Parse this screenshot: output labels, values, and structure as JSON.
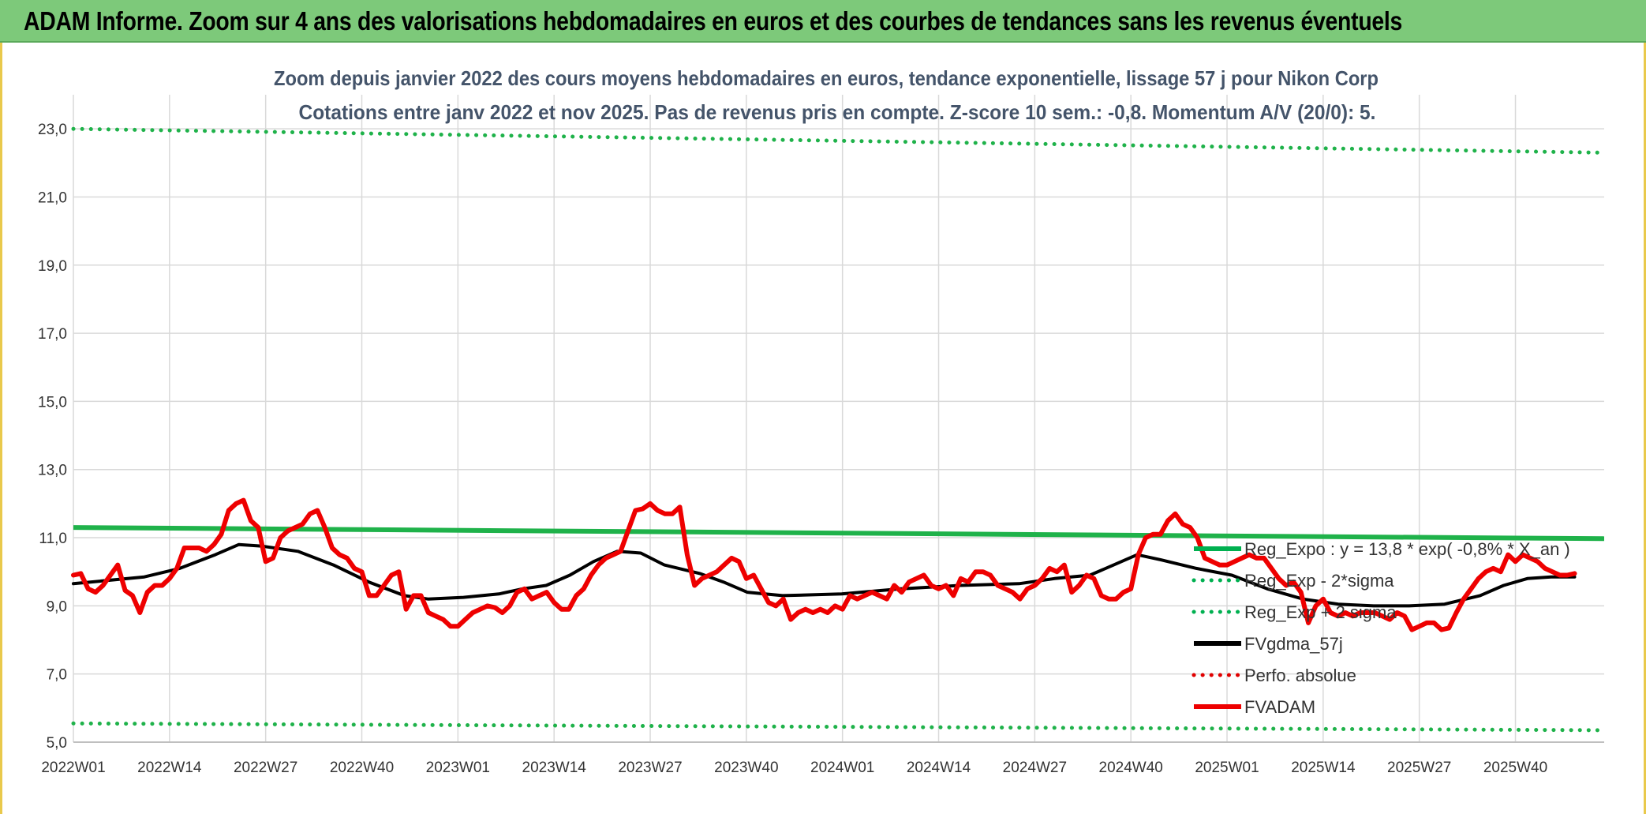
{
  "banner": {
    "title": "ADAM Informe. Zoom sur 4 ans des valorisations hebdomadaires en euros et des courbes de tendances sans les revenus éventuels"
  },
  "chart_data": {
    "type": "line",
    "title_line1": "Zoom depuis janvier 2022 des cours moyens hebdomadaires en euros, tendance exponentielle, lissage 57 j pour Nikon Corp",
    "title_line2": "Cotations entre janv 2022 et nov 2025. Pas de revenus pris en compte. Z-score 10 sem.: -0,8. Momentum A/V (20/0): 5.",
    "x_tick_labels": [
      "2022W01",
      "2022W14",
      "2022W27",
      "2022W40",
      "2023W01",
      "2023W14",
      "2023W27",
      "2023W40",
      "2024W01",
      "2024W14",
      "2024W27",
      "2024W40",
      "2025W01",
      "2025W14",
      "2025W27",
      "2025W40"
    ],
    "x_tick_index": [
      0,
      13,
      26,
      39,
      52,
      65,
      78,
      91,
      104,
      117,
      130,
      143,
      156,
      169,
      182,
      195
    ],
    "n_weeks": 208,
    "y_tick_labels": [
      "5,0",
      "7,0",
      "9,0",
      "11,0",
      "13,0",
      "15,0",
      "17,0",
      "19,0",
      "21,0",
      "23,0"
    ],
    "ylim": [
      5,
      24
    ],
    "grid": true,
    "legend_position": "right-inside",
    "legend": [
      {
        "label": "Reg_Expo : y = 13,8 * exp( -0,8% * X_an )",
        "color": "#00b050",
        "style": "solid"
      },
      {
        "label": "Reg_Exp - 2*sigma",
        "color": "#00b050",
        "style": "dotted"
      },
      {
        "label": "Reg_Exp + 2 sigma",
        "color": "#00b050",
        "style": "dotted"
      },
      {
        "label": "FVgdma_57j",
        "color": "#000000",
        "style": "solid"
      },
      {
        "label": "Perfo. absolue",
        "color": "#e00000",
        "style": "dotted"
      },
      {
        "label": "FVADAM",
        "color": "#ee0000",
        "style": "solid"
      }
    ],
    "series": [
      {
        "key": "reg_expo",
        "color": "#1fb24a",
        "points": [
          [
            0,
            11.3
          ],
          [
            207,
            10.97
          ]
        ]
      },
      {
        "key": "reg_plus_2sigma",
        "color": "#1fb24a",
        "points": [
          [
            0,
            23.0
          ],
          [
            207,
            22.3
          ]
        ]
      },
      {
        "key": "reg_minus_2sigma",
        "color": "#1fb24a",
        "points": [
          [
            0,
            5.55
          ],
          [
            207,
            5.35
          ]
        ]
      },
      {
        "key": "fvgdma_57j",
        "color": "#000000",
        "points": [
          [
            0,
            9.65
          ],
          [
            6,
            9.75
          ],
          [
            12,
            9.85
          ],
          [
            18,
            10.1
          ],
          [
            24,
            10.5
          ],
          [
            28,
            10.8
          ],
          [
            32,
            10.75
          ],
          [
            38,
            10.6
          ],
          [
            44,
            10.2
          ],
          [
            50,
            9.7
          ],
          [
            56,
            9.3
          ],
          [
            60,
            9.2
          ],
          [
            66,
            9.25
          ],
          [
            72,
            9.35
          ],
          [
            76,
            9.5
          ],
          [
            80,
            9.6
          ],
          [
            84,
            9.9
          ],
          [
            88,
            10.3
          ],
          [
            92,
            10.6
          ],
          [
            96,
            10.55
          ],
          [
            100,
            10.2
          ],
          [
            106,
            9.95
          ],
          [
            110,
            9.7
          ],
          [
            114,
            9.4
          ],
          [
            120,
            9.3
          ],
          [
            130,
            9.35
          ],
          [
            140,
            9.5
          ],
          [
            150,
            9.6
          ],
          [
            160,
            9.65
          ],
          [
            166,
            9.8
          ],
          [
            172,
            9.9
          ],
          [
            176,
            10.2
          ],
          [
            180,
            10.5
          ],
          [
            184,
            10.35
          ],
          [
            190,
            10.1
          ],
          [
            196,
            9.9
          ],
          [
            202,
            9.5
          ],
          [
            208,
            9.2
          ],
          [
            214,
            9.05
          ],
          [
            220,
            9.0
          ],
          [
            226,
            9.0
          ],
          [
            232,
            9.05
          ],
          [
            238,
            9.3
          ],
          [
            242,
            9.6
          ],
          [
            246,
            9.8
          ],
          [
            250,
            9.85
          ],
          [
            254,
            9.85
          ]
        ]
      },
      {
        "key": "fvadam",
        "color": "#ee0000",
        "points": [
          [
            0,
            9.9
          ],
          [
            1,
            9.95
          ],
          [
            2,
            9.5
          ],
          [
            3,
            9.4
          ],
          [
            4,
            9.6
          ],
          [
            5,
            9.9
          ],
          [
            6,
            10.2
          ],
          [
            7,
            9.45
          ],
          [
            8,
            9.3
          ],
          [
            9,
            8.8
          ],
          [
            10,
            9.4
          ],
          [
            11,
            9.6
          ],
          [
            12,
            9.6
          ],
          [
            13,
            9.8
          ],
          [
            14,
            10.1
          ],
          [
            15,
            10.7
          ],
          [
            16,
            10.7
          ],
          [
            17,
            10.7
          ],
          [
            18,
            10.6
          ],
          [
            19,
            10.8
          ],
          [
            20,
            11.1
          ],
          [
            21,
            11.8
          ],
          [
            22,
            12.0
          ],
          [
            23,
            12.1
          ],
          [
            24,
            11.5
          ],
          [
            25,
            11.3
          ],
          [
            26,
            10.3
          ],
          [
            27,
            10.4
          ],
          [
            28,
            11.0
          ],
          [
            29,
            11.2
          ],
          [
            30,
            11.3
          ],
          [
            31,
            11.4
          ],
          [
            32,
            11.7
          ],
          [
            33,
            11.8
          ],
          [
            34,
            11.3
          ],
          [
            35,
            10.7
          ],
          [
            36,
            10.5
          ],
          [
            37,
            10.4
          ],
          [
            38,
            10.1
          ],
          [
            39,
            10.0
          ],
          [
            40,
            9.3
          ],
          [
            41,
            9.3
          ],
          [
            42,
            9.6
          ],
          [
            43,
            9.9
          ],
          [
            44,
            10.0
          ],
          [
            45,
            8.9
          ],
          [
            46,
            9.3
          ],
          [
            47,
            9.3
          ],
          [
            48,
            8.8
          ],
          [
            49,
            8.7
          ],
          [
            50,
            8.6
          ],
          [
            51,
            8.4
          ],
          [
            52,
            8.4
          ],
          [
            53,
            8.6
          ],
          [
            54,
            8.8
          ],
          [
            55,
            8.9
          ],
          [
            56,
            9.0
          ],
          [
            57,
            8.95
          ],
          [
            58,
            8.8
          ],
          [
            59,
            9.0
          ],
          [
            60,
            9.4
          ],
          [
            61,
            9.5
          ],
          [
            62,
            9.2
          ],
          [
            63,
            9.3
          ],
          [
            64,
            9.4
          ],
          [
            65,
            9.1
          ],
          [
            66,
            8.9
          ],
          [
            67,
            8.9
          ],
          [
            68,
            9.3
          ],
          [
            69,
            9.5
          ],
          [
            70,
            9.9
          ],
          [
            71,
            10.2
          ],
          [
            72,
            10.4
          ],
          [
            73,
            10.5
          ],
          [
            74,
            10.6
          ],
          [
            75,
            11.2
          ],
          [
            76,
            11.8
          ],
          [
            77,
            11.85
          ],
          [
            78,
            12.0
          ],
          [
            79,
            11.8
          ],
          [
            80,
            11.7
          ],
          [
            81,
            11.7
          ],
          [
            82,
            11.9
          ],
          [
            83,
            10.5
          ],
          [
            84,
            9.6
          ],
          [
            85,
            9.8
          ],
          [
            86,
            9.9
          ],
          [
            87,
            10.0
          ],
          [
            88,
            10.2
          ],
          [
            89,
            10.4
          ],
          [
            90,
            10.3
          ],
          [
            91,
            9.8
          ],
          [
            92,
            9.9
          ],
          [
            93,
            9.5
          ],
          [
            94,
            9.1
          ],
          [
            95,
            9.0
          ],
          [
            96,
            9.2
          ],
          [
            97,
            8.6
          ],
          [
            98,
            8.8
          ],
          [
            99,
            8.9
          ],
          [
            100,
            8.8
          ],
          [
            101,
            8.9
          ],
          [
            102,
            8.8
          ],
          [
            103,
            9.0
          ],
          [
            104,
            8.9
          ],
          [
            105,
            9.3
          ],
          [
            106,
            9.2
          ],
          [
            107,
            9.3
          ],
          [
            108,
            9.4
          ],
          [
            109,
            9.3
          ],
          [
            110,
            9.2
          ],
          [
            111,
            9.6
          ],
          [
            112,
            9.4
          ],
          [
            113,
            9.7
          ],
          [
            114,
            9.8
          ],
          [
            115,
            9.9
          ],
          [
            116,
            9.6
          ],
          [
            117,
            9.5
          ],
          [
            118,
            9.6
          ],
          [
            119,
            9.3
          ],
          [
            120,
            9.8
          ],
          [
            121,
            9.7
          ],
          [
            122,
            10.0
          ],
          [
            123,
            10.0
          ],
          [
            124,
            9.9
          ],
          [
            125,
            9.6
          ],
          [
            126,
            9.5
          ],
          [
            127,
            9.4
          ],
          [
            128,
            9.2
          ],
          [
            129,
            9.5
          ],
          [
            130,
            9.6
          ],
          [
            131,
            9.8
          ],
          [
            132,
            10.1
          ],
          [
            133,
            10.0
          ],
          [
            134,
            10.2
          ],
          [
            135,
            9.4
          ],
          [
            136,
            9.6
          ],
          [
            137,
            9.9
          ],
          [
            138,
            9.8
          ],
          [
            139,
            9.3
          ],
          [
            140,
            9.2
          ],
          [
            141,
            9.2
          ],
          [
            142,
            9.4
          ],
          [
            143,
            9.5
          ],
          [
            144,
            10.5
          ],
          [
            145,
            11.0
          ],
          [
            146,
            11.1
          ],
          [
            147,
            11.1
          ],
          [
            148,
            11.5
          ],
          [
            149,
            11.7
          ],
          [
            150,
            11.4
          ],
          [
            151,
            11.3
          ],
          [
            152,
            11.0
          ],
          [
            153,
            10.4
          ],
          [
            154,
            10.3
          ],
          [
            155,
            10.2
          ],
          [
            156,
            10.2
          ],
          [
            157,
            10.3
          ],
          [
            158,
            10.4
          ],
          [
            159,
            10.5
          ],
          [
            160,
            10.4
          ],
          [
            161,
            10.4
          ],
          [
            162,
            10.1
          ],
          [
            163,
            9.8
          ],
          [
            164,
            9.6
          ],
          [
            165,
            9.7
          ],
          [
            166,
            9.4
          ],
          [
            167,
            8.5
          ],
          [
            168,
            9.0
          ],
          [
            169,
            9.2
          ],
          [
            170,
            8.8
          ],
          [
            171,
            8.7
          ],
          [
            172,
            8.8
          ],
          [
            173,
            8.7
          ],
          [
            174,
            8.8
          ],
          [
            175,
            8.8
          ],
          [
            176,
            8.8
          ],
          [
            177,
            8.7
          ],
          [
            178,
            8.6
          ],
          [
            179,
            8.8
          ],
          [
            180,
            8.7
          ],
          [
            181,
            8.3
          ],
          [
            182,
            8.4
          ],
          [
            183,
            8.5
          ],
          [
            184,
            8.5
          ],
          [
            185,
            8.3
          ],
          [
            186,
            8.35
          ],
          [
            187,
            8.8
          ],
          [
            188,
            9.2
          ],
          [
            189,
            9.5
          ],
          [
            190,
            9.8
          ],
          [
            191,
            10.0
          ],
          [
            192,
            10.1
          ],
          [
            193,
            10.0
          ],
          [
            194,
            10.5
          ],
          [
            195,
            10.3
          ],
          [
            196,
            10.5
          ],
          [
            197,
            10.4
          ],
          [
            198,
            10.3
          ],
          [
            199,
            10.1
          ],
          [
            200,
            10.0
          ],
          [
            201,
            9.9
          ],
          [
            202,
            9.9
          ],
          [
            203,
            9.95
          ]
        ]
      }
    ]
  }
}
